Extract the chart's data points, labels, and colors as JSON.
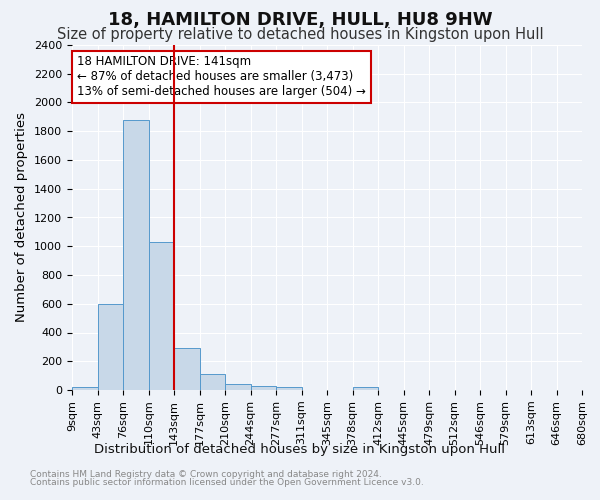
{
  "title": "18, HAMILTON DRIVE, HULL, HU8 9HW",
  "subtitle": "Size of property relative to detached houses in Kingston upon Hull",
  "xlabel": "Distribution of detached houses by size in Kingston upon Hull",
  "ylabel": "Number of detached properties",
  "footnote1": "Contains HM Land Registry data © Crown copyright and database right 2024.",
  "footnote2": "Contains public sector information licensed under the Open Government Licence v3.0.",
  "bin_edges": [
    "9sqm",
    "43sqm",
    "76sqm",
    "110sqm",
    "143sqm",
    "177sqm",
    "210sqm",
    "244sqm",
    "277sqm",
    "311sqm",
    "345sqm",
    "378sqm",
    "412sqm",
    "445sqm",
    "479sqm",
    "512sqm",
    "546sqm",
    "579sqm",
    "613sqm",
    "646sqm",
    "680sqm"
  ],
  "bar_heights": [
    20,
    600,
    1880,
    1030,
    290,
    110,
    45,
    25,
    20,
    0,
    0,
    20,
    0,
    0,
    0,
    0,
    0,
    0,
    0,
    0
  ],
  "bar_color": "#c8d8e8",
  "bar_edge_color": "#5599cc",
  "red_line_x": 4,
  "red_line_color": "#cc0000",
  "ylim": [
    0,
    2400
  ],
  "yticks": [
    0,
    200,
    400,
    600,
    800,
    1000,
    1200,
    1400,
    1600,
    1800,
    2000,
    2200,
    2400
  ],
  "annotation_line1": "18 HAMILTON DRIVE: 141sqm",
  "annotation_line2": "← 87% of detached houses are smaller (3,473)",
  "annotation_line3": "13% of semi-detached houses are larger (504) →",
  "annotation_box_color": "#ffffff",
  "annotation_box_edge": "#cc0000",
  "background_color": "#eef2f8",
  "grid_color": "#ffffff",
  "title_fontsize": 13,
  "subtitle_fontsize": 10.5,
  "axis_label_fontsize": 9.5,
  "tick_fontsize": 8,
  "annotation_fontsize": 8.5
}
